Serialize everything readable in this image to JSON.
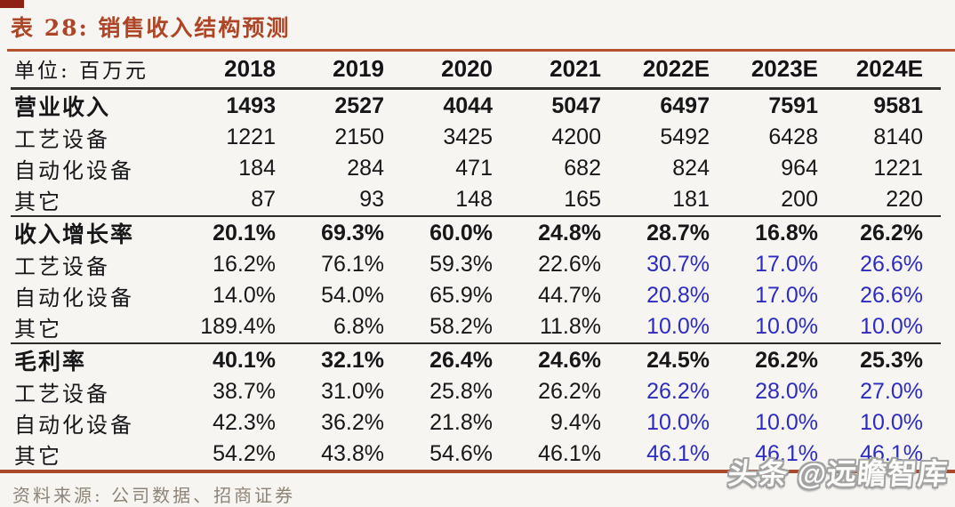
{
  "title": "表 28: 销售收入结构预测",
  "unit_label": "单位: 百万元",
  "columns": [
    "2018",
    "2019",
    "2020",
    "2021",
    "2022E",
    "2023E",
    "2024E"
  ],
  "sections": [
    {
      "header": {
        "label": "营业收入",
        "values": [
          "1493",
          "2527",
          "4044",
          "5047",
          "6497",
          "7591",
          "9581"
        ]
      },
      "rows": [
        {
          "label": "工艺设备",
          "values": [
            "1221",
            "2150",
            "3425",
            "4200",
            "5492",
            "6428",
            "8140"
          ],
          "forecast_blue": false
        },
        {
          "label": "自动化设备",
          "values": [
            "184",
            "284",
            "471",
            "682",
            "824",
            "964",
            "1221"
          ],
          "forecast_blue": false
        },
        {
          "label": "其它",
          "values": [
            "87",
            "93",
            "148",
            "165",
            "181",
            "200",
            "220"
          ],
          "forecast_blue": false
        }
      ]
    },
    {
      "header": {
        "label": "收入增长率",
        "values": [
          "20.1%",
          "69.3%",
          "60.0%",
          "24.8%",
          "28.7%",
          "16.8%",
          "26.2%"
        ]
      },
      "rows": [
        {
          "label": "工艺设备",
          "values": [
            "16.2%",
            "76.1%",
            "59.3%",
            "22.6%",
            "30.7%",
            "17.0%",
            "26.6%"
          ],
          "forecast_blue": true
        },
        {
          "label": "自动化设备",
          "values": [
            "14.0%",
            "54.0%",
            "65.9%",
            "44.7%",
            "20.8%",
            "17.0%",
            "26.6%"
          ],
          "forecast_blue": true
        },
        {
          "label": "其它",
          "values": [
            "189.4%",
            "6.8%",
            "58.2%",
            "11.8%",
            "10.0%",
            "10.0%",
            "10.0%"
          ],
          "forecast_blue": true
        }
      ]
    },
    {
      "header": {
        "label": "毛利率",
        "values": [
          "40.1%",
          "32.1%",
          "26.4%",
          "24.6%",
          "24.5%",
          "26.2%",
          "25.3%"
        ]
      },
      "rows": [
        {
          "label": "工艺设备",
          "values": [
            "38.7%",
            "31.0%",
            "25.8%",
            "26.2%",
            "26.2%",
            "28.0%",
            "27.0%"
          ],
          "forecast_blue": true
        },
        {
          "label": "自动化设备",
          "values": [
            "42.3%",
            "36.2%",
            "21.8%",
            "9.4%",
            "10.0%",
            "10.0%",
            "10.0%"
          ],
          "forecast_blue": true
        },
        {
          "label": "其它",
          "values": [
            "54.2%",
            "43.8%",
            "54.6%",
            "46.1%",
            "46.1%",
            "46.1%",
            "46.1%"
          ],
          "forecast_blue": true
        }
      ]
    }
  ],
  "source": "资料来源: 公司数据、招商证券",
  "watermark": "头条 @远瞻智库",
  "colors": {
    "accent_rust": "#ad4526",
    "forecast_blue": "#2c2cc0",
    "text_black": "#17171a",
    "source_gray": "#8d8478"
  }
}
